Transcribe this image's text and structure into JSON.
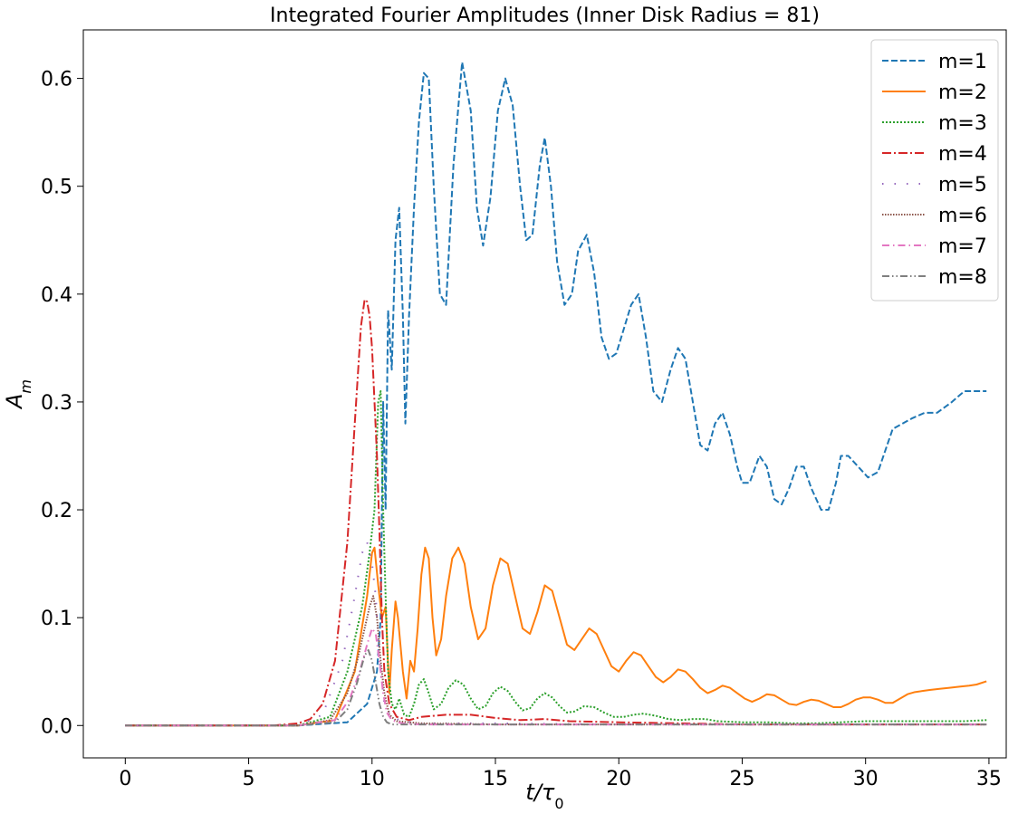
{
  "chart_data": {
    "type": "line",
    "title": "Integrated Fourier Amplitudes (Inner Disk Radius = 81)",
    "xlabel": "t/τ0",
    "ylabel": "A_m",
    "xlim": [
      -1.7,
      35.7
    ],
    "ylim": [
      -0.03,
      0.645
    ],
    "xticks": [
      0,
      5,
      10,
      15,
      20,
      25,
      30,
      35
    ],
    "yticks": [
      0.0,
      0.1,
      0.2,
      0.3,
      0.4,
      0.5,
      0.6
    ],
    "xtick_labels": [
      "0",
      "5",
      "10",
      "15",
      "20",
      "25",
      "30",
      "35"
    ],
    "ytick_labels": [
      "0.0",
      "0.1",
      "0.2",
      "0.3",
      "0.4",
      "0.5",
      "0.6"
    ],
    "grid": false,
    "legend_position": "top-right",
    "series": [
      {
        "name": "m=1",
        "color": "#1f77b4",
        "dash": "dashed",
        "x": [
          0,
          7,
          9,
          9.8,
          10.2,
          10.35,
          10.45,
          10.55,
          10.65,
          10.8,
          10.95,
          11.1,
          11.25,
          11.35,
          11.5,
          11.7,
          11.9,
          12.1,
          12.3,
          12.5,
          12.75,
          13.0,
          13.3,
          13.65,
          14.0,
          14.25,
          14.5,
          14.8,
          15.1,
          15.4,
          15.7,
          16.0,
          16.25,
          16.5,
          16.8,
          17.0,
          17.25,
          17.5,
          17.8,
          18.1,
          18.35,
          18.7,
          19.0,
          19.3,
          19.6,
          19.9,
          20.1,
          20.5,
          20.8,
          21.1,
          21.4,
          21.75,
          22.1,
          22.4,
          22.7,
          23.0,
          23.3,
          23.6,
          23.9,
          24.2,
          24.5,
          24.8,
          25.0,
          25.3,
          25.7,
          26.0,
          26.3,
          26.6,
          26.9,
          27.2,
          27.5,
          27.8,
          28.2,
          28.5,
          28.8,
          29.0,
          29.3,
          29.7,
          30.1,
          30.5,
          30.8,
          31.1,
          31.5,
          31.9,
          32.4,
          32.9,
          33.5,
          34.0,
          34.4,
          34.9
        ],
        "y": [
          0,
          0,
          0.003,
          0.02,
          0.05,
          0.1,
          0.3,
          0.2,
          0.385,
          0.33,
          0.45,
          0.48,
          0.38,
          0.28,
          0.38,
          0.48,
          0.56,
          0.605,
          0.6,
          0.5,
          0.4,
          0.39,
          0.52,
          0.615,
          0.57,
          0.48,
          0.445,
          0.49,
          0.57,
          0.6,
          0.575,
          0.5,
          0.45,
          0.455,
          0.52,
          0.545,
          0.5,
          0.43,
          0.39,
          0.4,
          0.44,
          0.455,
          0.42,
          0.36,
          0.34,
          0.345,
          0.36,
          0.39,
          0.4,
          0.36,
          0.31,
          0.3,
          0.33,
          0.35,
          0.34,
          0.3,
          0.26,
          0.255,
          0.28,
          0.29,
          0.27,
          0.24,
          0.225,
          0.225,
          0.25,
          0.24,
          0.21,
          0.205,
          0.22,
          0.24,
          0.24,
          0.22,
          0.2,
          0.2,
          0.225,
          0.25,
          0.25,
          0.24,
          0.23,
          0.235,
          0.255,
          0.275,
          0.28,
          0.285,
          0.29,
          0.29,
          0.3,
          0.31,
          0.31,
          0.31
        ]
      },
      {
        "name": "m=2",
        "color": "#ff7f0e",
        "dash": "solid",
        "x": [
          0,
          7,
          8.5,
          9.3,
          9.8,
          10.0,
          10.1,
          10.25,
          10.4,
          10.55,
          10.7,
          10.8,
          10.95,
          11.05,
          11.25,
          11.4,
          11.55,
          11.7,
          11.85,
          12.0,
          12.15,
          12.3,
          12.45,
          12.6,
          12.8,
          13.0,
          13.25,
          13.5,
          13.75,
          14.0,
          14.3,
          14.6,
          14.9,
          15.2,
          15.5,
          15.8,
          16.1,
          16.4,
          16.7,
          17.0,
          17.3,
          17.6,
          17.9,
          18.2,
          18.5,
          18.8,
          19.1,
          19.4,
          19.7,
          20.0,
          20.3,
          20.6,
          20.9,
          21.2,
          21.5,
          21.8,
          22.1,
          22.4,
          22.7,
          23.0,
          23.3,
          23.6,
          23.9,
          24.2,
          24.5,
          24.8,
          25.1,
          25.4,
          25.7,
          26.0,
          26.3,
          26.6,
          26.9,
          27.2,
          27.5,
          27.8,
          28.1,
          28.4,
          28.7,
          29.0,
          29.3,
          29.6,
          29.9,
          30.2,
          30.5,
          30.8,
          31.1,
          31.4,
          31.7,
          32.0,
          32.3,
          32.6,
          33.0,
          33.4,
          33.8,
          34.2,
          34.5,
          34.9
        ],
        "y": [
          0,
          0,
          0.005,
          0.05,
          0.12,
          0.16,
          0.165,
          0.13,
          0.1,
          0.11,
          0.03,
          0.07,
          0.115,
          0.1,
          0.05,
          0.025,
          0.06,
          0.05,
          0.09,
          0.14,
          0.165,
          0.155,
          0.1,
          0.065,
          0.08,
          0.12,
          0.155,
          0.165,
          0.15,
          0.11,
          0.08,
          0.09,
          0.13,
          0.155,
          0.15,
          0.12,
          0.09,
          0.085,
          0.105,
          0.13,
          0.125,
          0.1,
          0.075,
          0.07,
          0.08,
          0.09,
          0.085,
          0.07,
          0.055,
          0.05,
          0.06,
          0.068,
          0.065,
          0.055,
          0.045,
          0.04,
          0.045,
          0.052,
          0.05,
          0.043,
          0.035,
          0.03,
          0.033,
          0.037,
          0.035,
          0.03,
          0.025,
          0.022,
          0.025,
          0.029,
          0.028,
          0.024,
          0.02,
          0.019,
          0.022,
          0.024,
          0.023,
          0.02,
          0.017,
          0.017,
          0.02,
          0.024,
          0.026,
          0.026,
          0.024,
          0.021,
          0.021,
          0.025,
          0.029,
          0.031,
          0.032,
          0.033,
          0.034,
          0.035,
          0.036,
          0.037,
          0.038,
          0.041
        ]
      },
      {
        "name": "m=3",
        "color": "#2ca02c",
        "dash": "dotted",
        "x": [
          0,
          7,
          8.3,
          9.0,
          9.6,
          9.9,
          10.1,
          10.25,
          10.35,
          10.45,
          10.55,
          10.65,
          10.8,
          10.95,
          11.1,
          11.3,
          11.5,
          11.7,
          11.9,
          12.1,
          12.3,
          12.5,
          12.8,
          13.1,
          13.4,
          13.7,
          14.0,
          14.3,
          14.6,
          14.9,
          15.2,
          15.5,
          15.8,
          16.1,
          16.4,
          16.7,
          17.0,
          17.3,
          17.6,
          17.9,
          18.2,
          18.6,
          19.0,
          19.4,
          19.8,
          20.2,
          20.6,
          21.0,
          21.5,
          22.0,
          22.5,
          23.0,
          23.5,
          24.0,
          25.0,
          26.0,
          27.0,
          28.0,
          29.0,
          30.0,
          31.0,
          32.0,
          33.0,
          34.0,
          34.9
        ],
        "y": [
          0,
          0,
          0.008,
          0.05,
          0.11,
          0.16,
          0.2,
          0.3,
          0.31,
          0.2,
          0.12,
          0.05,
          0.02,
          0.015,
          0.025,
          0.01,
          0.008,
          0.02,
          0.038,
          0.043,
          0.03,
          0.015,
          0.02,
          0.035,
          0.042,
          0.038,
          0.025,
          0.015,
          0.018,
          0.03,
          0.036,
          0.032,
          0.022,
          0.014,
          0.016,
          0.025,
          0.03,
          0.026,
          0.018,
          0.012,
          0.013,
          0.018,
          0.017,
          0.012,
          0.008,
          0.008,
          0.01,
          0.011,
          0.009,
          0.006,
          0.005,
          0.006,
          0.006,
          0.004,
          0.003,
          0.003,
          0.002,
          0.002,
          0.003,
          0.004,
          0.004,
          0.004,
          0.004,
          0.004,
          0.005
        ]
      },
      {
        "name": "m=4",
        "color": "#d62728",
        "dash": "dashdot",
        "x": [
          0,
          6.0,
          7.0,
          7.5,
          8.0,
          8.5,
          9.0,
          9.3,
          9.55,
          9.7,
          9.8,
          9.9,
          10.0,
          10.1,
          10.2,
          10.3,
          10.4,
          10.5,
          10.7,
          11.0,
          11.5,
          12.0,
          13.0,
          14.0,
          15.0,
          16.0,
          17.0,
          18.0,
          20.0,
          25.0,
          30.0,
          34.9
        ],
        "y": [
          0,
          0,
          0.002,
          0.006,
          0.02,
          0.06,
          0.17,
          0.28,
          0.37,
          0.395,
          0.393,
          0.38,
          0.35,
          0.3,
          0.25,
          0.18,
          0.1,
          0.05,
          0.02,
          0.008,
          0.005,
          0.008,
          0.01,
          0.01,
          0.007,
          0.005,
          0.006,
          0.004,
          0.003,
          0.001,
          0.001,
          0.001
        ]
      },
      {
        "name": "m=5",
        "color": "#9467bd",
        "dash": "loose-dot",
        "x": [
          0,
          7,
          8.0,
          8.8,
          9.3,
          9.6,
          9.8,
          10.0,
          10.15,
          10.3,
          10.5,
          10.8,
          11.2,
          12.0,
          15.0,
          20.0,
          25.0,
          30.0,
          34.9
        ],
        "y": [
          0,
          0,
          0.01,
          0.06,
          0.12,
          0.16,
          0.17,
          0.15,
          0.12,
          0.06,
          0.02,
          0.008,
          0.004,
          0.002,
          0.002,
          0.001,
          0.001,
          0.001,
          0.001
        ]
      },
      {
        "name": "m=6",
        "color": "#8c564b",
        "dash": "dense-dot",
        "x": [
          0,
          7,
          8.3,
          9.0,
          9.4,
          9.7,
          9.9,
          10.05,
          10.2,
          10.35,
          10.5,
          10.7,
          11.0,
          12.0,
          15.0,
          20.0,
          25.0,
          30.0,
          34.9
        ],
        "y": [
          0,
          0,
          0.005,
          0.03,
          0.06,
          0.09,
          0.11,
          0.12,
          0.1,
          0.06,
          0.03,
          0.01,
          0.004,
          0.002,
          0.001,
          0.001,
          0.001,
          0.001,
          0.001
        ]
      },
      {
        "name": "m=7",
        "color": "#e377c2",
        "dash": "dash-dot",
        "x": [
          0,
          7,
          8.5,
          9.1,
          9.5,
          9.8,
          10.0,
          10.15,
          10.3,
          10.45,
          10.6,
          10.8,
          11.2,
          12.0,
          15.0,
          20.0,
          25.0,
          30.0,
          34.9
        ],
        "y": [
          0,
          0,
          0.005,
          0.025,
          0.05,
          0.075,
          0.09,
          0.085,
          0.06,
          0.03,
          0.012,
          0.005,
          0.002,
          0.001,
          0.001,
          0.001,
          0.001,
          0.001,
          0.001
        ]
      },
      {
        "name": "m=8",
        "color": "#7f7f7f",
        "dash": "dash-dot-dot",
        "x": [
          0,
          7,
          8.5,
          9.0,
          9.4,
          9.7,
          9.85,
          10.0,
          10.15,
          10.3,
          10.45,
          10.6,
          10.8,
          11.2,
          12.0,
          15.0,
          20.0,
          25.0,
          30.0,
          34.9
        ],
        "y": [
          0,
          0,
          0.003,
          0.015,
          0.04,
          0.065,
          0.07,
          0.06,
          0.04,
          0.02,
          0.008,
          0.003,
          0.001,
          0.001,
          0.001,
          0.001,
          0.001,
          0.001,
          0.001,
          0.001
        ]
      }
    ]
  }
}
